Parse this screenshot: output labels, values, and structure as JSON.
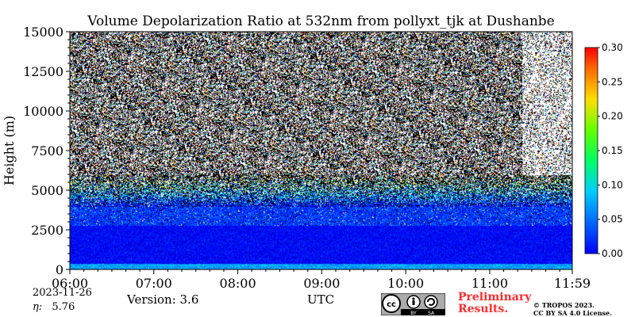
{
  "chart_data": {
    "type": "heatmap",
    "title": "Volume Depolarization Ratio at 532nm from pollyxt_tjk at Dushanbe",
    "ylabel": "Height (m)",
    "xlabel": "UTC",
    "x_ticks": [
      "06:00",
      "07:00",
      "08:00",
      "09:00",
      "10:00",
      "11:00",
      "11:59"
    ],
    "x_range": [
      "06:00",
      "11:59"
    ],
    "y_ticks": [
      0,
      2500,
      5000,
      7500,
      10000,
      12500,
      15000
    ],
    "ylim": [
      0,
      15000
    ],
    "colorbar": {
      "ticks": [
        "0.00",
        "0.05",
        "0.10",
        "0.15",
        "0.20",
        "0.25",
        "0.30"
      ],
      "range": [
        0,
        0.3
      ],
      "colormap": "jet"
    },
    "layers": [
      {
        "height_range_m": [
          0,
          500
        ],
        "value": 0.08,
        "note": "surface layer, green"
      },
      {
        "height_range_m": [
          500,
          3500
        ],
        "value": 0.04,
        "note": "aerosol layer, blue"
      },
      {
        "height_range_m": [
          3500,
          6000
        ],
        "value": 0.05,
        "note": "sparse noisy signal"
      },
      {
        "height_range_m": [
          6000,
          15000
        ],
        "value": 0.15,
        "note": "noise dominated"
      }
    ]
  },
  "footer": {
    "date": "2023-11-26",
    "eta_label": "η:",
    "eta_value": "5.76",
    "version": "Version: 3.6",
    "xlabel": "UTC",
    "preliminary_line1": "Preliminary",
    "preliminary_line2": "Results.",
    "copyright_line1": "© TROPOS 2023.",
    "copyright_line2": "CC BY SA 4.0 License."
  },
  "license_badge": {
    "text_by": "BY",
    "text_sa": "SA"
  },
  "colors": {
    "colormap": "jet",
    "prelim": "#ff2b2b"
  }
}
